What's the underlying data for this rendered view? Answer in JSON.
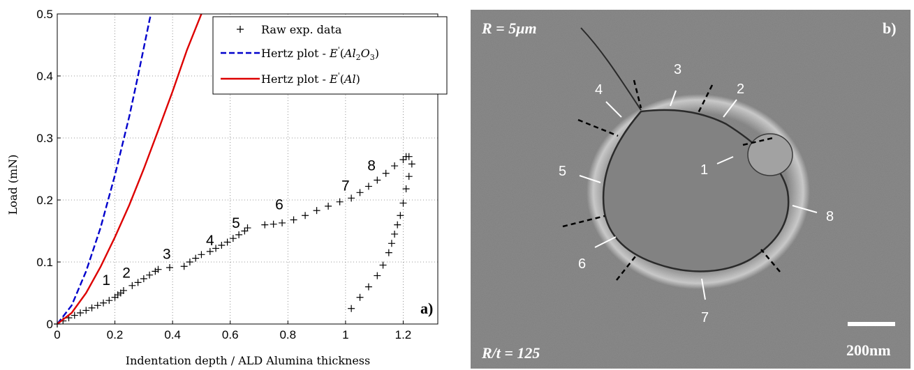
{
  "chart_data": {
    "type": "scatter",
    "xlabel": "Indentation depth / ALD Alumina thickness",
    "ylabel": "Load (mN)",
    "xlim": [
      0,
      1.32
    ],
    "ylim": [
      0,
      0.5
    ],
    "xticks": [
      "0",
      "0.2",
      "0.4",
      "0.6",
      "0.8",
      "1",
      "1.2"
    ],
    "yticks": [
      "0",
      "0.1",
      "0.2",
      "0.3",
      "0.4",
      "0.5"
    ],
    "grid": true,
    "legend_position": "top-right",
    "panel_label": "a)",
    "series": [
      {
        "name": "Raw exp. data",
        "kind": "markers-plus",
        "color": "#000000",
        "x": [
          0.0,
          0.02,
          0.04,
          0.06,
          0.08,
          0.1,
          0.12,
          0.14,
          0.16,
          0.18,
          0.2,
          0.21,
          0.22,
          0.23,
          0.26,
          0.28,
          0.3,
          0.32,
          0.34,
          0.35,
          0.39,
          0.44,
          0.46,
          0.48,
          0.5,
          0.53,
          0.55,
          0.57,
          0.59,
          0.61,
          0.63,
          0.65,
          0.66,
          0.72,
          0.75,
          0.78,
          0.82,
          0.86,
          0.9,
          0.94,
          0.98,
          1.02,
          1.05,
          1.08,
          1.11,
          1.14,
          1.17,
          1.2,
          1.21,
          1.22,
          1.23,
          1.22,
          1.21,
          1.2,
          1.19,
          1.18,
          1.17,
          1.16,
          1.15,
          1.13,
          1.11,
          1.08,
          1.05,
          1.02
        ],
        "y": [
          0.0,
          0.005,
          0.01,
          0.014,
          0.018,
          0.022,
          0.026,
          0.03,
          0.034,
          0.038,
          0.043,
          0.047,
          0.05,
          0.054,
          0.062,
          0.067,
          0.073,
          0.079,
          0.085,
          0.088,
          0.091,
          0.093,
          0.1,
          0.106,
          0.112,
          0.117,
          0.122,
          0.127,
          0.132,
          0.138,
          0.144,
          0.15,
          0.155,
          0.16,
          0.161,
          0.163,
          0.168,
          0.175,
          0.183,
          0.19,
          0.197,
          0.203,
          0.212,
          0.222,
          0.232,
          0.243,
          0.255,
          0.265,
          0.27,
          0.27,
          0.258,
          0.238,
          0.218,
          0.195,
          0.175,
          0.16,
          0.145,
          0.13,
          0.115,
          0.095,
          0.078,
          0.06,
          0.043,
          0.025
        ]
      },
      {
        "name": "Hertz plot - E'(Al2O3)",
        "kind": "dashed-line",
        "color": "#0000cc",
        "x": [
          0.0,
          0.05,
          0.1,
          0.15,
          0.2,
          0.25,
          0.28,
          0.3,
          0.32,
          0.33
        ],
        "y": [
          0.0,
          0.03,
          0.085,
          0.155,
          0.24,
          0.335,
          0.4,
          0.445,
          0.49,
          0.51
        ]
      },
      {
        "name": "Hertz plot - E'(Al)",
        "kind": "solid-line",
        "color": "#dd0000",
        "x": [
          0.0,
          0.05,
          0.1,
          0.15,
          0.2,
          0.25,
          0.3,
          0.35,
          0.4,
          0.45,
          0.5,
          0.52
        ],
        "y": [
          0.0,
          0.018,
          0.05,
          0.092,
          0.14,
          0.192,
          0.25,
          0.312,
          0.375,
          0.442,
          0.5,
          0.525
        ]
      }
    ],
    "annotations": [
      {
        "text": "1",
        "x": 0.17,
        "y": 0.063
      },
      {
        "text": "2",
        "x": 0.24,
        "y": 0.075
      },
      {
        "text": "3",
        "x": 0.38,
        "y": 0.105
      },
      {
        "text": "4",
        "x": 0.53,
        "y": 0.127
      },
      {
        "text": "5",
        "x": 0.62,
        "y": 0.155
      },
      {
        "text": "6",
        "x": 0.77,
        "y": 0.185
      },
      {
        "text": "7",
        "x": 1.0,
        "y": 0.215
      },
      {
        "text": "8",
        "x": 1.09,
        "y": 0.248
      }
    ]
  },
  "sem_image": {
    "panel_label": "b)",
    "radius_label": "R = 5μm",
    "ratio_label": "R/t = 125",
    "scale_bar_label": "200nm",
    "labels": [
      "1",
      "2",
      "3",
      "4",
      "5",
      "6",
      "7",
      "8"
    ]
  }
}
